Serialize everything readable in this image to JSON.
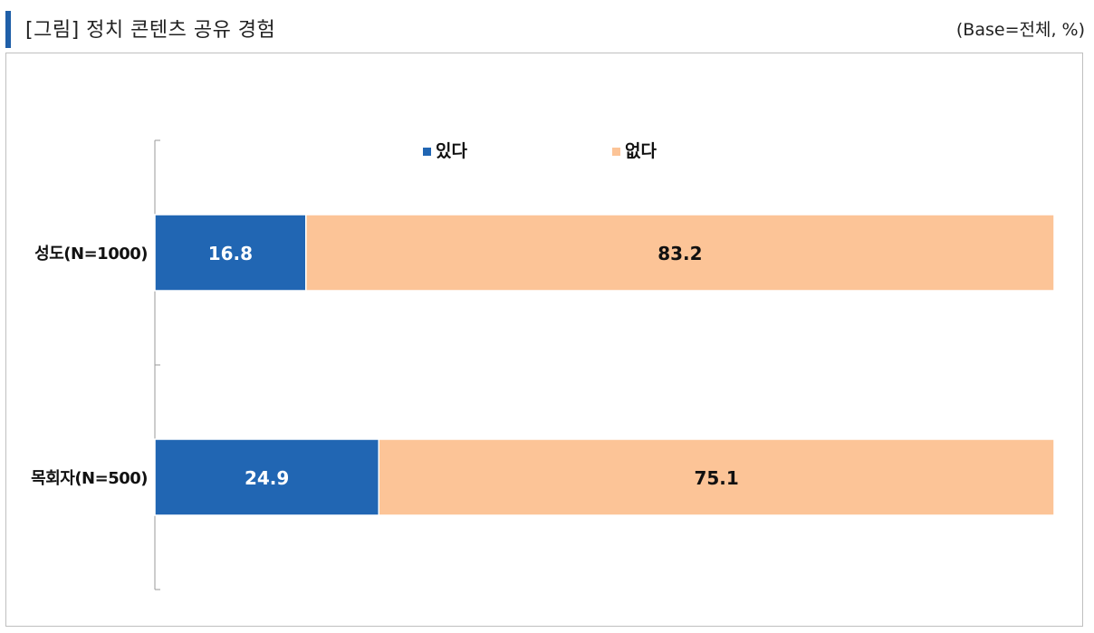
{
  "header": {
    "title": "[그림] 정치 콘텐츠 공유 경험",
    "base_note": "(Base=전체, %)"
  },
  "chart_data": {
    "type": "bar",
    "orientation": "horizontal",
    "stacked": true,
    "categories": [
      "성도(N=1000)",
      "목회자(N=500)"
    ],
    "series": [
      {
        "name": "있다",
        "values": [
          16.8,
          24.9
        ],
        "color": "#2166b3",
        "label_color": "#ffffff"
      },
      {
        "name": "없다",
        "values": [
          83.2,
          75.1
        ],
        "color": "#fcc497",
        "label_color": "#111111"
      }
    ],
    "xlim": [
      0,
      100
    ],
    "grid": false,
    "legend": "top-center"
  }
}
